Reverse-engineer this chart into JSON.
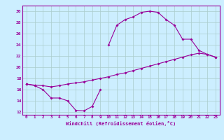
{
  "xlabel": "Windchill (Refroidissement éolien,°C)",
  "x": [
    0,
    1,
    2,
    3,
    4,
    5,
    6,
    7,
    8,
    9,
    10,
    11,
    12,
    13,
    14,
    15,
    16,
    17,
    18,
    19,
    20,
    21,
    22,
    23
  ],
  "y_dip": [
    17.0,
    16.7,
    16.0,
    14.5,
    14.5,
    14.0,
    12.3,
    12.2,
    13.0,
    16.0,
    null,
    null,
    null,
    null,
    null,
    null,
    null,
    null,
    null,
    null,
    null,
    null,
    null,
    null
  ],
  "y_diag": [
    17.0,
    16.8,
    16.7,
    16.5,
    16.7,
    17.0,
    17.2,
    17.4,
    17.7,
    18.0,
    18.3,
    18.7,
    19.0,
    19.4,
    19.8,
    20.2,
    20.6,
    21.0,
    21.4,
    21.8,
    22.2,
    22.5,
    22.3,
    21.8
  ],
  "y_peak": [
    17.0,
    null,
    null,
    null,
    null,
    null,
    null,
    null,
    null,
    null,
    24.0,
    27.5,
    28.5,
    29.0,
    29.8,
    30.0,
    29.8,
    28.5,
    27.5,
    25.0,
    25.0,
    23.0,
    22.3,
    21.8
  ],
  "ylim": [
    11.5,
    31
  ],
  "xlim": [
    -0.5,
    23.5
  ],
  "yticks": [
    12,
    14,
    16,
    18,
    20,
    22,
    24,
    26,
    28,
    30
  ],
  "xticks": [
    0,
    1,
    2,
    3,
    4,
    5,
    6,
    7,
    8,
    9,
    10,
    11,
    12,
    13,
    14,
    15,
    16,
    17,
    18,
    19,
    20,
    21,
    22,
    23
  ],
  "line_color": "#990099",
  "bg_color": "#cceeff",
  "grid_color": "#aacccc"
}
